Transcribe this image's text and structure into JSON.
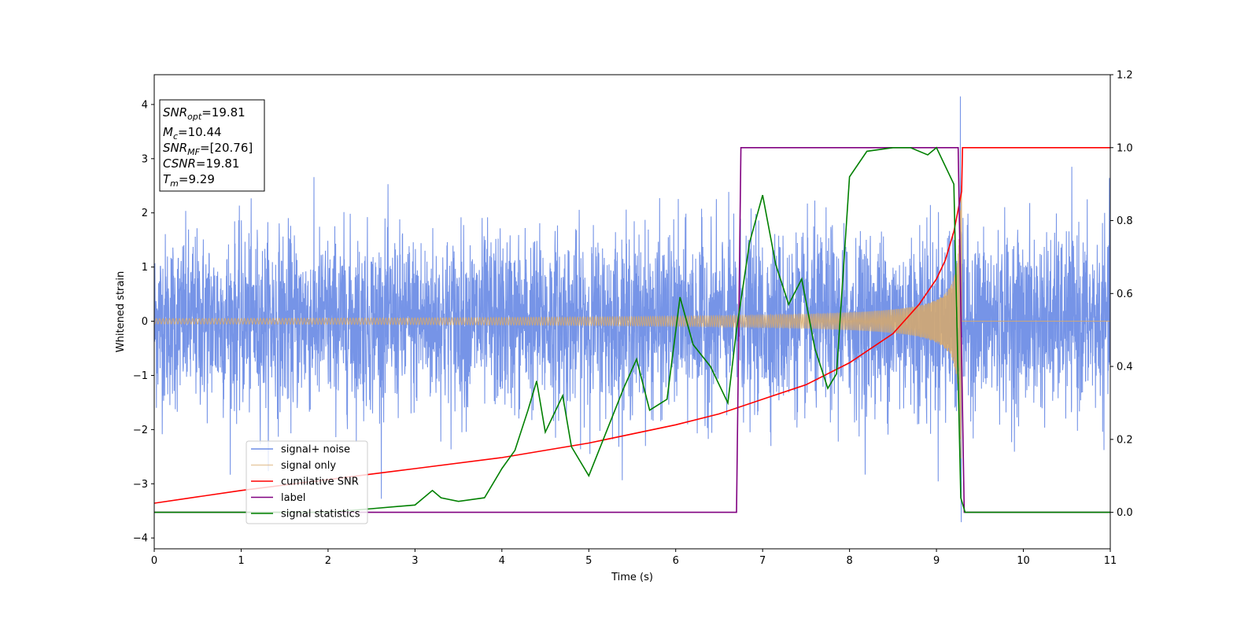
{
  "chart_data": {
    "type": "line",
    "title": "",
    "xlabel": "Time (s)",
    "ylabel": "Whitened strain",
    "xlim": [
      0,
      11
    ],
    "ylim": [
      -4.2,
      4.55
    ],
    "ylim_right": [
      -0.1,
      1.2
    ],
    "xticks": [
      "0",
      "1",
      "2",
      "3",
      "4",
      "5",
      "6",
      "7",
      "8",
      "9",
      "10",
      "11"
    ],
    "yticks": [
      "−4",
      "−3",
      "−2",
      "−1",
      "0",
      "1",
      "2",
      "3",
      "4"
    ],
    "yticks_right": [
      "0.0",
      "0.2",
      "0.4",
      "0.6",
      "0.8",
      "1.0",
      "1.2"
    ],
    "grid": false,
    "legend_position": "lower-left",
    "annotation": {
      "position": "top-left",
      "lines": [
        {
          "sym": "SNR",
          "sub": "opt",
          "val": "=19.81"
        },
        {
          "sym": "M",
          "sub": "c",
          "val": "=10.44"
        },
        {
          "sym": "SNR",
          "sub": "MF",
          "val": "=[20.76]"
        },
        {
          "sym": "CSNR",
          "sub": "",
          "val": "=19.81"
        },
        {
          "sym": "T",
          "sub": "m",
          "val": "=9.29"
        }
      ]
    },
    "series": [
      {
        "name": "signal+ noise",
        "axis": "left",
        "color": "#6f8ee6",
        "kind": "noise",
        "noise_sigma": 0.8,
        "noise_range": [
          -3.8,
          4.15
        ]
      },
      {
        "name": "signal only",
        "axis": "left",
        "color": "#d8a96a",
        "kind": "chirp",
        "start_amplitude": 0.05,
        "peak_amplitude": 2.6,
        "end_time": 9.29
      },
      {
        "name": "cumilative SNR",
        "axis": "right",
        "color": "#ff0000",
        "x": [
          0,
          1,
          2,
          3,
          4,
          5,
          6,
          6.5,
          7,
          7.5,
          8,
          8.5,
          8.8,
          9.0,
          9.1,
          9.2,
          9.25,
          9.29,
          9.3,
          11
        ],
        "y": [
          0.025,
          0.06,
          0.09,
          0.12,
          0.15,
          0.19,
          0.24,
          0.27,
          0.31,
          0.35,
          0.41,
          0.49,
          0.57,
          0.64,
          0.69,
          0.77,
          0.83,
          0.88,
          1.0,
          1.0
        ]
      },
      {
        "name": "label",
        "axis": "right",
        "color": "#800080",
        "x": [
          0,
          6.7,
          6.75,
          9.25,
          9.32,
          11
        ],
        "y": [
          0.0,
          0.0,
          1.0,
          1.0,
          0.0,
          0.0
        ]
      },
      {
        "name": "signal statistics",
        "axis": "right",
        "color": "#008000",
        "x": [
          0,
          2.0,
          2.5,
          3.0,
          3.2,
          3.3,
          3.5,
          3.8,
          4.0,
          4.15,
          4.3,
          4.4,
          4.5,
          4.7,
          4.8,
          5.0,
          5.2,
          5.4,
          5.55,
          5.7,
          5.9,
          6.05,
          6.2,
          6.4,
          6.6,
          6.7,
          6.85,
          7.0,
          7.15,
          7.3,
          7.45,
          7.6,
          7.75,
          7.85,
          8.0,
          8.2,
          8.5,
          8.7,
          8.9,
          9.0,
          9.2,
          9.28,
          9.33,
          11
        ],
        "y": [
          0.0,
          0.0,
          0.01,
          0.02,
          0.06,
          0.04,
          0.03,
          0.04,
          0.12,
          0.17,
          0.28,
          0.36,
          0.22,
          0.32,
          0.18,
          0.1,
          0.22,
          0.34,
          0.42,
          0.28,
          0.31,
          0.59,
          0.46,
          0.4,
          0.3,
          0.5,
          0.74,
          0.87,
          0.68,
          0.57,
          0.64,
          0.45,
          0.34,
          0.38,
          0.92,
          0.99,
          1.0,
          1.0,
          0.98,
          1.0,
          0.9,
          0.04,
          0.0,
          0.0
        ]
      }
    ]
  }
}
